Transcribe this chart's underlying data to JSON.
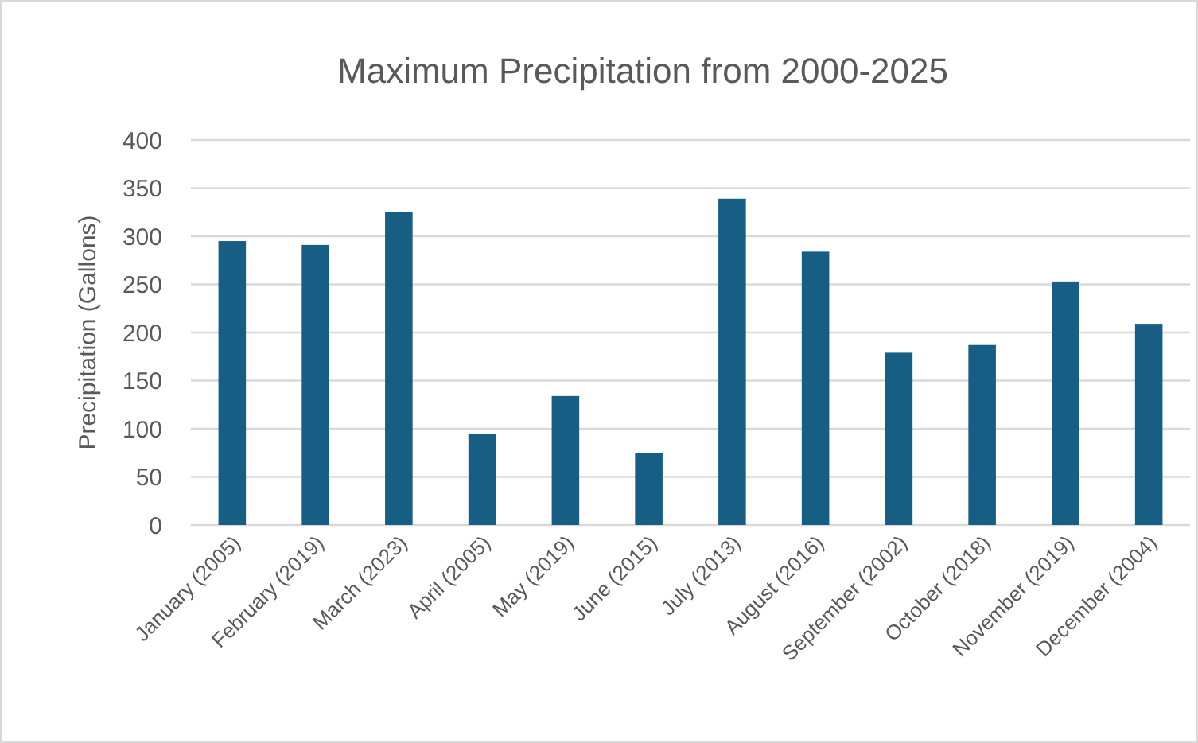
{
  "chart_data": {
    "type": "bar",
    "title": "Maximum Precipitation from 2000-2025",
    "ylabel": "Precipitation (Gallons)",
    "categories": [
      "January (2005)",
      "February (2019)",
      "March (2023)",
      "April (2005)",
      "May (2019)",
      "June (2015)",
      "July (2013)",
      "August (2016)",
      "September (2002)",
      "October (2018)",
      "November (2019)",
      "December (2004)"
    ],
    "values": [
      295,
      291,
      325,
      95,
      134,
      75,
      339,
      284,
      179,
      187,
      253,
      209
    ],
    "color": "#165e83",
    "ylim": [
      0,
      400
    ],
    "yticks": [
      0,
      50,
      100,
      150,
      200,
      250,
      300,
      350,
      400
    ],
    "grid": "y"
  }
}
